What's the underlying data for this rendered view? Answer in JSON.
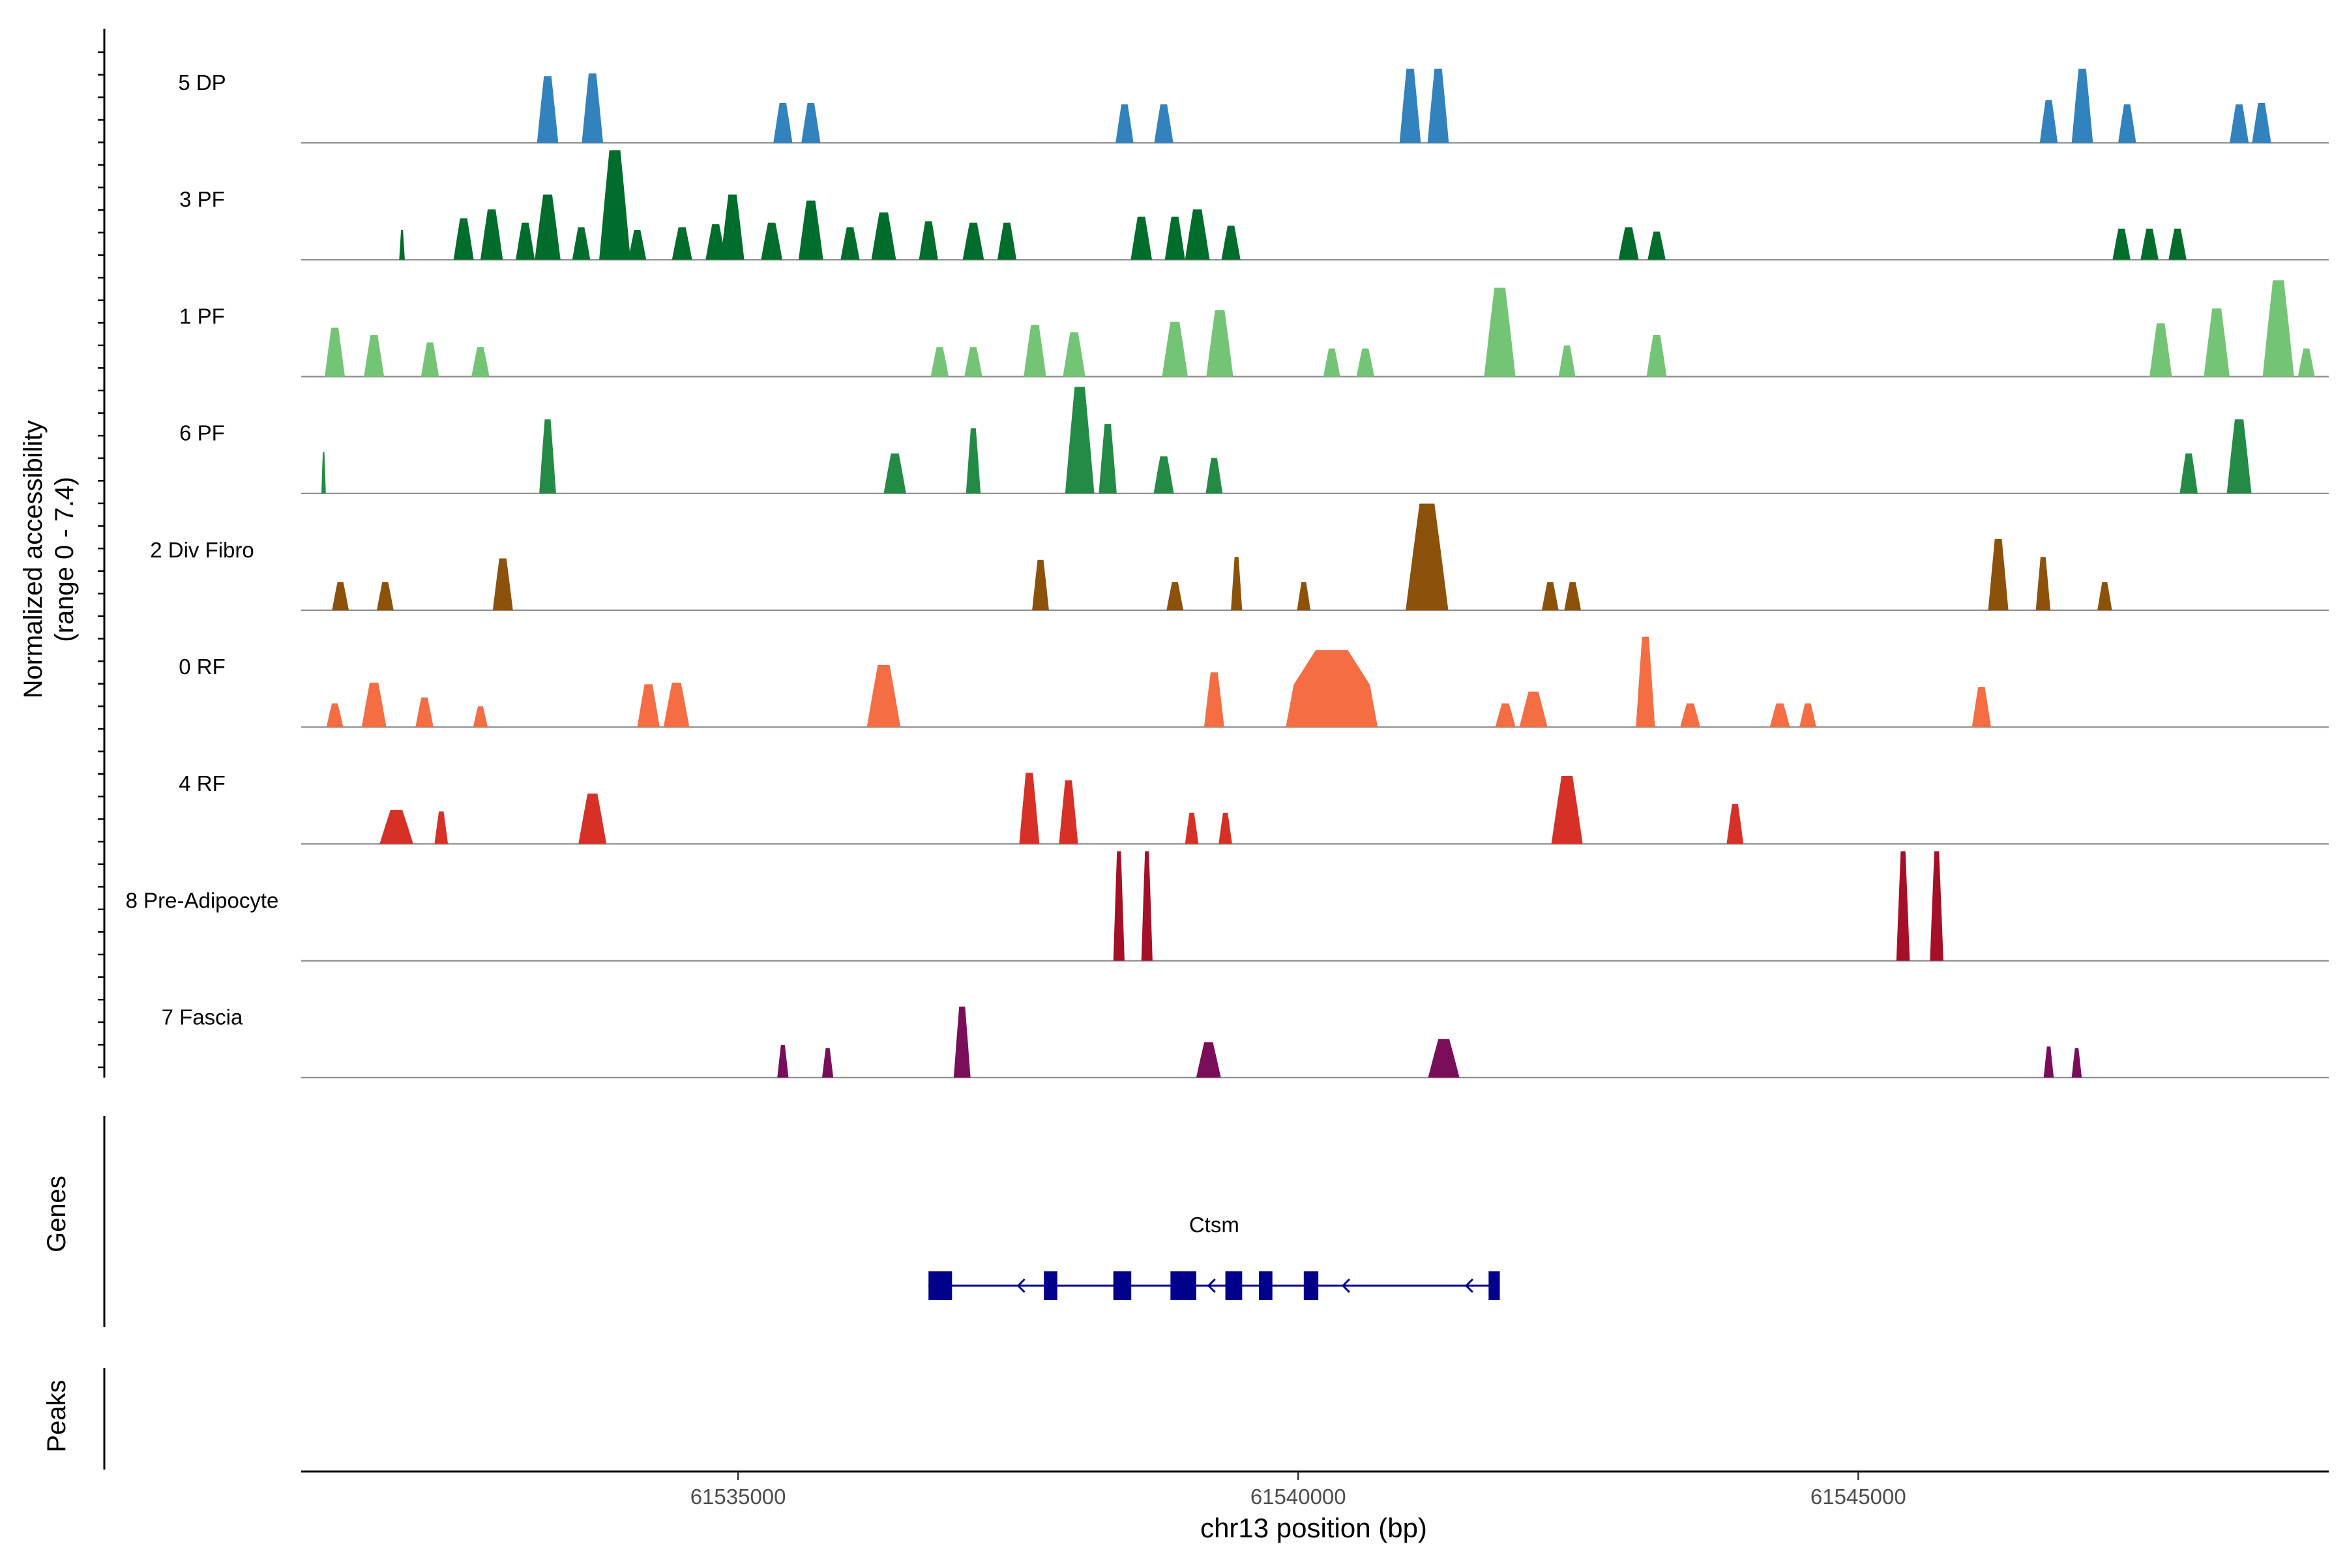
{
  "chart_data": {
    "type": "coverage",
    "ylabel_line1": "Normalized accessibility",
    "ylabel_line2": "(range 0 - 7.4)",
    "xlabel": "chr13 position (bp)",
    "x_range": [
      61531100,
      61549200
    ],
    "x_ticks": [
      {
        "value": 61535000,
        "label": "61535000"
      },
      {
        "value": 61540000,
        "label": "61540000"
      },
      {
        "value": 61545000,
        "label": "61545000"
      }
    ],
    "y_max": 7.4,
    "tracks": [
      {
        "name": "5 DP",
        "color": "#3182bd",
        "peaks": [
          [
            61533300,
            190,
            4.5
          ],
          [
            61533700,
            190,
            4.7
          ],
          [
            61535400,
            170,
            2.7
          ],
          [
            61535650,
            170,
            2.7
          ],
          [
            61538450,
            160,
            2.6
          ],
          [
            61538800,
            170,
            2.6
          ],
          [
            61541000,
            190,
            5.0
          ],
          [
            61541250,
            190,
            5.0
          ],
          [
            61546700,
            160,
            2.9
          ],
          [
            61547000,
            190,
            5.0
          ],
          [
            61547400,
            160,
            2.6
          ],
          [
            61548400,
            170,
            2.6
          ],
          [
            61548600,
            170,
            2.7
          ]
        ]
      },
      {
        "name": "3 PF",
        "color": "#006d2c",
        "peaks": [
          [
            61532000,
            50,
            2.0
          ],
          [
            61532550,
            180,
            2.8
          ],
          [
            61532800,
            200,
            3.4
          ],
          [
            61533100,
            170,
            2.5
          ],
          [
            61533300,
            230,
            4.4
          ],
          [
            61533600,
            160,
            2.2
          ],
          [
            61533900,
            280,
            7.4
          ],
          [
            61534100,
            160,
            2.0
          ],
          [
            61534500,
            180,
            2.2
          ],
          [
            61534800,
            180,
            2.4
          ],
          [
            61534950,
            210,
            4.4
          ],
          [
            61535300,
            190,
            2.5
          ],
          [
            61535650,
            220,
            4.0
          ],
          [
            61536000,
            170,
            2.2
          ],
          [
            61536300,
            220,
            3.2
          ],
          [
            61536700,
            170,
            2.6
          ],
          [
            61537100,
            190,
            2.5
          ],
          [
            61537400,
            170,
            2.5
          ],
          [
            61538600,
            190,
            2.9
          ],
          [
            61538900,
            180,
            2.9
          ],
          [
            61539100,
            220,
            3.4
          ],
          [
            61539400,
            170,
            2.3
          ],
          [
            61542950,
            180,
            2.2
          ],
          [
            61543200,
            160,
            1.9
          ],
          [
            61547350,
            160,
            2.1
          ],
          [
            61547600,
            160,
            2.1
          ],
          [
            61547850,
            160,
            2.1
          ]
        ]
      },
      {
        "name": "1 PF",
        "color": "#74c476",
        "peaks": [
          [
            61531400,
            180,
            3.3
          ],
          [
            61531750,
            180,
            2.8
          ],
          [
            61532250,
            160,
            2.3
          ],
          [
            61532700,
            160,
            2.0
          ],
          [
            61536800,
            160,
            2.0
          ],
          [
            61537100,
            160,
            2.0
          ],
          [
            61537650,
            200,
            3.5
          ],
          [
            61538000,
            200,
            3.0
          ],
          [
            61538900,
            230,
            3.7
          ],
          [
            61539300,
            240,
            4.5
          ],
          [
            61540300,
            150,
            1.9
          ],
          [
            61540600,
            160,
            1.9
          ],
          [
            61541800,
            280,
            6.0
          ],
          [
            61542400,
            150,
            2.1
          ],
          [
            61543200,
            180,
            2.8
          ],
          [
            61547700,
            200,
            3.6
          ],
          [
            61548200,
            230,
            4.6
          ],
          [
            61548750,
            280,
            6.5
          ],
          [
            61549000,
            150,
            1.9
          ]
        ]
      },
      {
        "name": "6 PF",
        "color": "#238b45",
        "peaks": [
          [
            61531300,
            40,
            2.8
          ],
          [
            61533300,
            150,
            5.0
          ],
          [
            61536400,
            200,
            2.7
          ],
          [
            61537100,
            130,
            4.4
          ],
          [
            61538050,
            260,
            7.2
          ],
          [
            61538300,
            160,
            4.7
          ],
          [
            61538800,
            180,
            2.5
          ],
          [
            61539250,
            150,
            2.4
          ],
          [
            61547950,
            160,
            2.7
          ],
          [
            61548400,
            220,
            5.0
          ]
        ]
      },
      {
        "name": "2 Div Fibro",
        "color": "#8c510a",
        "peaks": [
          [
            61531450,
            150,
            1.9
          ],
          [
            61531850,
            150,
            1.9
          ],
          [
            61532900,
            180,
            3.5
          ],
          [
            61537700,
            150,
            3.4
          ],
          [
            61538900,
            150,
            1.9
          ],
          [
            61539450,
            100,
            3.6
          ],
          [
            61540050,
            120,
            1.9
          ],
          [
            61541150,
            380,
            7.2
          ],
          [
            61542250,
            150,
            1.9
          ],
          [
            61542450,
            150,
            1.9
          ],
          [
            61546250,
            180,
            4.8
          ],
          [
            61546650,
            130,
            3.6
          ],
          [
            61547200,
            130,
            1.9
          ]
        ]
      },
      {
        "name": "0 RF",
        "color": "#f46d43",
        "peaks": [
          [
            61531400,
            150,
            1.6
          ],
          [
            61531750,
            220,
            3.0
          ],
          [
            61532200,
            160,
            2.0
          ],
          [
            61532700,
            130,
            1.4
          ],
          [
            61534200,
            200,
            2.9
          ],
          [
            61534450,
            230,
            3.0
          ],
          [
            61536300,
            300,
            4.2
          ],
          [
            61539250,
            180,
            3.7
          ],
          [
            61540300,
            820,
            5.2
          ],
          [
            61541850,
            180,
            1.6
          ],
          [
            61542100,
            250,
            2.4
          ],
          [
            61543100,
            170,
            6.1
          ],
          [
            61543500,
            180,
            1.6
          ],
          [
            61544300,
            180,
            1.6
          ],
          [
            61544550,
            150,
            1.6
          ],
          [
            61546100,
            170,
            2.7
          ]
        ]
      },
      {
        "name": "4 RF",
        "color": "#d73027",
        "peaks": [
          [
            61531950,
            300,
            2.3
          ],
          [
            61532350,
            120,
            2.2
          ],
          [
            61533700,
            250,
            3.4
          ],
          [
            61537600,
            180,
            4.8
          ],
          [
            61537950,
            170,
            4.3
          ],
          [
            61539050,
            120,
            2.1
          ],
          [
            61539350,
            120,
            2.1
          ],
          [
            61542400,
            280,
            4.6
          ],
          [
            61543900,
            150,
            2.7
          ]
        ]
      },
      {
        "name": "8 Pre-Adipocyte",
        "color": "#a50f28",
        "peaks": [
          [
            61538400,
            100,
            7.4
          ],
          [
            61538650,
            100,
            7.4
          ],
          [
            61545400,
            120,
            7.4
          ],
          [
            61545700,
            120,
            7.4
          ]
        ]
      },
      {
        "name": "7 Fascia",
        "color": "#7a0e5a",
        "peaks": [
          [
            61535400,
            100,
            2.2
          ],
          [
            61535800,
            100,
            2.0
          ],
          [
            61537000,
            150,
            4.8
          ],
          [
            61539200,
            220,
            2.4
          ],
          [
            61541300,
            280,
            2.6
          ],
          [
            61546700,
            90,
            2.1
          ],
          [
            61546950,
            90,
            2.0
          ]
        ]
      }
    ],
    "genes": {
      "panel_label": "Genes",
      "name": "Ctsm",
      "color": "#00008b",
      "start": 61536700,
      "end": 61541800,
      "exons": [
        [
          61536700,
          61536910
        ],
        [
          61537730,
          61537850
        ],
        [
          61538350,
          61538510
        ],
        [
          61538860,
          61539090
        ],
        [
          61539350,
          61539500
        ],
        [
          61539650,
          61539770
        ],
        [
          61540050,
          61540180
        ],
        [
          61541700,
          61541800
        ]
      ],
      "strand_arrows": [
        61537500,
        61539200,
        61540400,
        61541500
      ]
    },
    "peaks_panel": {
      "panel_label": "Peaks"
    }
  }
}
